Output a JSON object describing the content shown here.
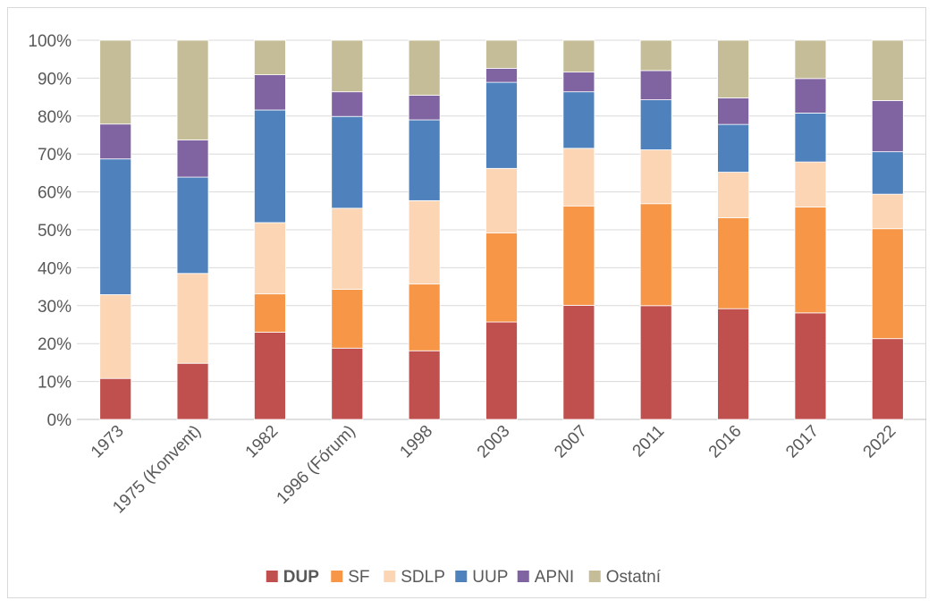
{
  "chart_data": {
    "type": "bar",
    "stacked": true,
    "percent": true,
    "categories": [
      "1973",
      "1975 (Konvent)",
      "1982",
      "1996 (Fórum)",
      "1998",
      "2003",
      "2007",
      "2011",
      "2016",
      "2017",
      "2022"
    ],
    "y_ticks": [
      "0%",
      "10%",
      "20%",
      "30%",
      "40%",
      "50%",
      "60%",
      "70%",
      "80%",
      "90%",
      "100%"
    ],
    "ylim": [
      0,
      100
    ],
    "grid": "horizontal",
    "legend_position": "bottom",
    "series": [
      {
        "name": "DUP",
        "color": "#c0504d",
        "values": [
          10.8,
          14.8,
          23.0,
          18.8,
          18.1,
          25.7,
          30.1,
          30.0,
          29.2,
          28.1,
          21.3
        ],
        "legend_bold": true
      },
      {
        "name": "SF",
        "color": "#f79646",
        "values": [
          0,
          0,
          10.1,
          15.5,
          17.6,
          23.5,
          26.2,
          26.9,
          24.0,
          27.9,
          29.0
        ]
      },
      {
        "name": "SDLP",
        "color": "#fcd5b5",
        "values": [
          22.1,
          23.7,
          18.8,
          21.4,
          22.0,
          17.0,
          15.2,
          14.2,
          12.0,
          11.9,
          9.1
        ]
      },
      {
        "name": "UUP",
        "color": "#4f81bd",
        "values": [
          35.8,
          25.4,
          29.7,
          24.2,
          21.3,
          22.7,
          14.9,
          13.2,
          12.6,
          12.9,
          11.2
        ]
      },
      {
        "name": "APNI",
        "color": "#8064a2",
        "values": [
          9.2,
          9.8,
          9.3,
          6.5,
          6.5,
          3.7,
          5.2,
          7.7,
          7.0,
          9.1,
          13.5
        ]
      },
      {
        "name": "Ostatní",
        "color": "#c4bd97",
        "values": [
          22.1,
          26.3,
          9.1,
          13.6,
          14.5,
          7.4,
          8.4,
          8.0,
          15.2,
          10.1,
          15.9
        ]
      }
    ]
  }
}
